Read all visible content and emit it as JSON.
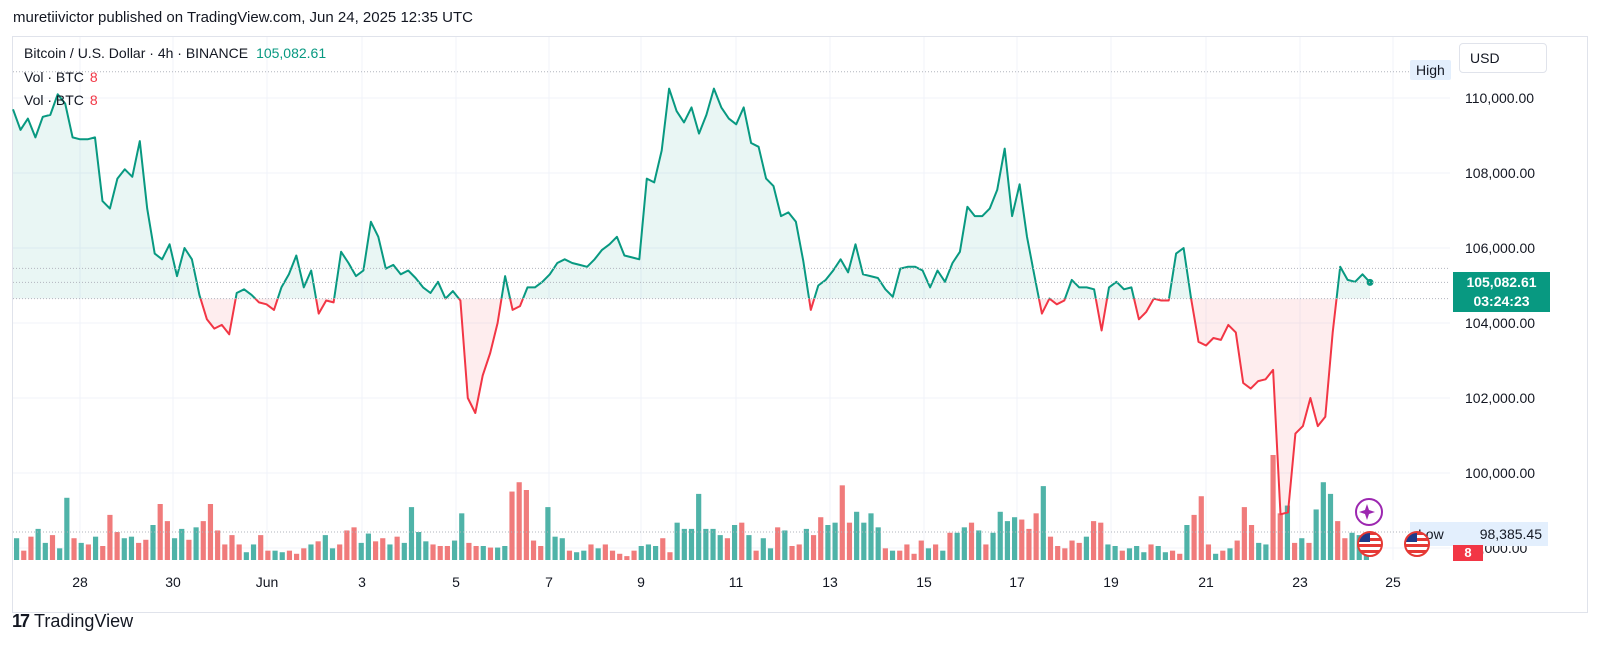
{
  "header": {
    "publisher": "muretiivictor published on TradingView.com, Jun 24, 2025 12:35 UTC"
  },
  "legend": {
    "symbol": "Bitcoin / U.S. Dollar · 4h · BINANCE",
    "last_price": "105,082.61",
    "vol_rows": [
      {
        "label": "Vol · BTC",
        "value": "8"
      },
      {
        "label": "Vol · BTC",
        "value": "8"
      }
    ]
  },
  "controls": {
    "currency": "USD"
  },
  "tags": {
    "high": "High",
    "price": "105,082.61",
    "countdown": "03:24:23",
    "low_label": "Low",
    "low_value": "98,385.45",
    "volume": "8"
  },
  "footer": {
    "brand": "TradingView"
  },
  "colors": {
    "up": "#089981",
    "down": "#f23645",
    "up_vol": "#4fb3a8",
    "down_vol": "#f07b7b"
  },
  "icons": [
    "sparkle-icon",
    "us-flag-icon",
    "us-flag-icon"
  ],
  "chart_data": {
    "type": "area",
    "x_tick_labels": [
      "28",
      "30",
      "Jun",
      "3",
      "5",
      "7",
      "9",
      "11",
      "13",
      "15",
      "17",
      "19",
      "21",
      "23",
      "25"
    ],
    "y_tick_labels": [
      "110,000.00",
      "108,000.00",
      "106,000.00",
      "104,000.00",
      "102,000.00",
      "100,000.00",
      "98,000.00"
    ],
    "ylim": [
      97800,
      111300
    ],
    "baseline": 104650,
    "high_level": 110700,
    "low_level": 98385.45,
    "last_value": 105082.61,
    "series": [
      {
        "name": "Bitcoin / U.S. Dollar",
        "values": [
          109700,
          109150,
          109450,
          108950,
          109500,
          109550,
          110100,
          109850,
          108950,
          108900,
          108900,
          108950,
          107250,
          107050,
          107850,
          108100,
          107900,
          108850,
          107050,
          105850,
          105700,
          106100,
          105250,
          106000,
          105700,
          104750,
          104100,
          103850,
          103950,
          103700,
          104800,
          104900,
          104750,
          104550,
          104500,
          104350,
          104950,
          105300,
          105800,
          104950,
          105400,
          104250,
          104600,
          104550,
          105900,
          105600,
          105250,
          105400,
          106700,
          106300,
          105450,
          105550,
          105300,
          105400,
          105200,
          104950,
          104800,
          105100,
          104650,
          104850,
          104600,
          102000,
          101600,
          102600,
          103200,
          104000,
          105250,
          104350,
          104450,
          104950,
          104950,
          105100,
          105300,
          105600,
          105700,
          105600,
          105550,
          105500,
          105700,
          105950,
          106100,
          106300,
          105800,
          105750,
          105700,
          107850,
          107750,
          108600,
          110250,
          109650,
          109350,
          109750,
          109050,
          109550,
          110250,
          109750,
          109450,
          109300,
          109750,
          108800,
          108700,
          107850,
          107650,
          106850,
          106950,
          106700,
          105650,
          104350,
          105000,
          105150,
          105400,
          105700,
          105350,
          106100,
          105300,
          105250,
          105200,
          104900,
          104700,
          105450,
          105500,
          105500,
          105400,
          104950,
          105400,
          105100,
          105600,
          105900,
          107100,
          106850,
          106850,
          107050,
          107550,
          108650,
          106850,
          107700,
          106300,
          105250,
          104250,
          104650,
          104500,
          104600,
          105150,
          104950,
          104950,
          104900,
          103800,
          104950,
          105100,
          104900,
          104950,
          104100,
          104300,
          104650,
          104600,
          104600,
          105850,
          106000,
          104650,
          103500,
          103400,
          103600,
          103550,
          103950,
          103750,
          102400,
          102250,
          102450,
          102500,
          102750,
          98900,
          98950,
          101050,
          101250,
          102000,
          101250,
          101500,
          103750,
          105500,
          105150,
          105100,
          105300,
          105082.61
        ]
      }
    ],
    "volume": [
      {
        "v": 28,
        "up": true
      },
      {
        "v": 12,
        "up": false
      },
      {
        "v": 30,
        "up": false
      },
      {
        "v": 40,
        "up": true
      },
      {
        "v": 22,
        "up": true
      },
      {
        "v": 32,
        "up": false
      },
      {
        "v": 15,
        "up": true
      },
      {
        "v": 80,
        "up": true
      },
      {
        "v": 28,
        "up": false
      },
      {
        "v": 22,
        "up": true
      },
      {
        "v": 20,
        "up": false
      },
      {
        "v": 30,
        "up": true
      },
      {
        "v": 18,
        "up": false
      },
      {
        "v": 58,
        "up": false
      },
      {
        "v": 36,
        "up": false
      },
      {
        "v": 28,
        "up": true
      },
      {
        "v": 30,
        "up": true
      },
      {
        "v": 22,
        "up": false
      },
      {
        "v": 26,
        "up": false
      },
      {
        "v": 45,
        "up": true
      },
      {
        "v": 72,
        "up": false
      },
      {
        "v": 50,
        "up": false
      },
      {
        "v": 28,
        "up": true
      },
      {
        "v": 40,
        "up": true
      },
      {
        "v": 26,
        "up": false
      },
      {
        "v": 42,
        "up": true
      },
      {
        "v": 50,
        "up": false
      },
      {
        "v": 72,
        "up": false
      },
      {
        "v": 38,
        "up": false
      },
      {
        "v": 20,
        "up": false
      },
      {
        "v": 32,
        "up": false
      },
      {
        "v": 20,
        "up": false
      },
      {
        "v": 10,
        "up": true
      },
      {
        "v": 20,
        "up": true
      },
      {
        "v": 32,
        "up": false
      },
      {
        "v": 12,
        "up": false
      },
      {
        "v": 12,
        "up": true
      },
      {
        "v": 10,
        "up": true
      },
      {
        "v": 12,
        "up": false
      },
      {
        "v": 8,
        "up": false
      },
      {
        "v": 15,
        "up": false
      },
      {
        "v": 20,
        "up": true
      },
      {
        "v": 24,
        "up": false
      },
      {
        "v": 32,
        "up": true
      },
      {
        "v": 15,
        "up": true
      },
      {
        "v": 20,
        "up": false
      },
      {
        "v": 38,
        "up": false
      },
      {
        "v": 42,
        "up": false
      },
      {
        "v": 22,
        "up": true
      },
      {
        "v": 34,
        "up": true
      },
      {
        "v": 24,
        "up": false
      },
      {
        "v": 28,
        "up": false
      },
      {
        "v": 20,
        "up": true
      },
      {
        "v": 30,
        "up": false
      },
      {
        "v": 22,
        "up": true
      },
      {
        "v": 68,
        "up": true
      },
      {
        "v": 36,
        "up": true
      },
      {
        "v": 24,
        "up": true
      },
      {
        "v": 20,
        "up": false
      },
      {
        "v": 18,
        "up": false
      },
      {
        "v": 18,
        "up": false
      },
      {
        "v": 25,
        "up": true
      },
      {
        "v": 60,
        "up": true
      },
      {
        "v": 22,
        "up": false
      },
      {
        "v": 18,
        "up": false
      },
      {
        "v": 18,
        "up": true
      },
      {
        "v": 16,
        "up": false
      },
      {
        "v": 16,
        "up": true
      },
      {
        "v": 18,
        "up": true
      },
      {
        "v": 88,
        "up": false
      },
      {
        "v": 100,
        "up": false
      },
      {
        "v": 90,
        "up": false
      },
      {
        "v": 25,
        "up": false
      },
      {
        "v": 18,
        "up": false
      },
      {
        "v": 68,
        "up": true
      },
      {
        "v": 30,
        "up": true
      },
      {
        "v": 28,
        "up": true
      },
      {
        "v": 12,
        "up": false
      },
      {
        "v": 10,
        "up": true
      },
      {
        "v": 12,
        "up": true
      },
      {
        "v": 20,
        "up": false
      },
      {
        "v": 15,
        "up": true
      },
      {
        "v": 20,
        "up": false
      },
      {
        "v": 12,
        "up": false
      },
      {
        "v": 8,
        "up": false
      },
      {
        "v": 5,
        "up": false
      },
      {
        "v": 12,
        "up": false
      },
      {
        "v": 18,
        "up": true
      },
      {
        "v": 20,
        "up": true
      },
      {
        "v": 18,
        "up": true
      },
      {
        "v": 28,
        "up": false
      },
      {
        "v": 10,
        "up": false
      },
      {
        "v": 48,
        "up": true
      },
      {
        "v": 40,
        "up": true
      },
      {
        "v": 40,
        "up": true
      },
      {
        "v": 85,
        "up": true
      },
      {
        "v": 40,
        "up": true
      },
      {
        "v": 40,
        "up": true
      },
      {
        "v": 32,
        "up": true
      },
      {
        "v": 28,
        "up": false
      },
      {
        "v": 45,
        "up": true
      },
      {
        "v": 48,
        "up": false
      },
      {
        "v": 32,
        "up": true
      },
      {
        "v": 12,
        "up": false
      },
      {
        "v": 28,
        "up": true
      },
      {
        "v": 15,
        "up": true
      },
      {
        "v": 42,
        "up": false
      },
      {
        "v": 38,
        "up": true
      },
      {
        "v": 18,
        "up": false
      },
      {
        "v": 20,
        "up": false
      },
      {
        "v": 40,
        "up": true
      },
      {
        "v": 32,
        "up": false
      },
      {
        "v": 55,
        "up": false
      },
      {
        "v": 45,
        "up": true
      },
      {
        "v": 48,
        "up": true
      },
      {
        "v": 96,
        "up": false
      },
      {
        "v": 48,
        "up": false
      },
      {
        "v": 62,
        "up": true
      },
      {
        "v": 48,
        "up": true
      },
      {
        "v": 60,
        "up": true
      },
      {
        "v": 42,
        "up": true
      },
      {
        "v": 15,
        "up": false
      },
      {
        "v": 12,
        "up": true
      },
      {
        "v": 12,
        "up": false
      },
      {
        "v": 20,
        "up": false
      },
      {
        "v": 8,
        "up": false
      },
      {
        "v": 25,
        "up": false
      },
      {
        "v": 15,
        "up": true
      },
      {
        "v": 20,
        "up": false
      },
      {
        "v": 12,
        "up": true
      },
      {
        "v": 35,
        "up": false
      },
      {
        "v": 35,
        "up": true
      },
      {
        "v": 42,
        "up": true
      },
      {
        "v": 48,
        "up": false
      },
      {
        "v": 38,
        "up": true
      },
      {
        "v": 20,
        "up": false
      },
      {
        "v": 35,
        "up": true
      },
      {
        "v": 62,
        "up": true
      },
      {
        "v": 50,
        "up": true
      },
      {
        "v": 55,
        "up": true
      },
      {
        "v": 52,
        "up": false
      },
      {
        "v": 40,
        "up": false
      },
      {
        "v": 60,
        "up": false
      },
      {
        "v": 95,
        "up": true
      },
      {
        "v": 30,
        "up": false
      },
      {
        "v": 18,
        "up": false
      },
      {
        "v": 15,
        "up": false
      },
      {
        "v": 25,
        "up": false
      },
      {
        "v": 22,
        "up": false
      },
      {
        "v": 30,
        "up": true
      },
      {
        "v": 50,
        "up": false
      },
      {
        "v": 48,
        "up": false
      },
      {
        "v": 20,
        "up": true
      },
      {
        "v": 18,
        "up": true
      },
      {
        "v": 12,
        "up": false
      },
      {
        "v": 15,
        "up": true
      },
      {
        "v": 18,
        "up": true
      },
      {
        "v": 10,
        "up": true
      },
      {
        "v": 20,
        "up": false
      },
      {
        "v": 18,
        "up": true
      },
      {
        "v": 10,
        "up": true
      },
      {
        "v": 12,
        "up": false
      },
      {
        "v": 8,
        "up": false
      },
      {
        "v": 45,
        "up": true
      },
      {
        "v": 58,
        "up": false
      },
      {
        "v": 82,
        "up": false
      },
      {
        "v": 20,
        "up": false
      },
      {
        "v": 8,
        "up": true
      },
      {
        "v": 12,
        "up": false
      },
      {
        "v": 15,
        "up": true
      },
      {
        "v": 25,
        "up": false
      },
      {
        "v": 68,
        "up": false
      },
      {
        "v": 45,
        "up": false
      },
      {
        "v": 22,
        "up": true
      },
      {
        "v": 20,
        "up": true
      },
      {
        "v": 135,
        "up": false
      },
      {
        "v": 60,
        "up": false
      },
      {
        "v": 70,
        "up": true
      },
      {
        "v": 22,
        "up": false
      },
      {
        "v": 28,
        "up": true
      },
      {
        "v": 22,
        "up": false
      },
      {
        "v": 65,
        "up": true
      },
      {
        "v": 100,
        "up": true
      },
      {
        "v": 85,
        "up": true
      },
      {
        "v": 50,
        "up": false
      },
      {
        "v": 28,
        "up": false
      },
      {
        "v": 35,
        "up": true
      },
      {
        "v": 32,
        "up": true
      },
      {
        "v": 25,
        "up": true
      }
    ]
  }
}
